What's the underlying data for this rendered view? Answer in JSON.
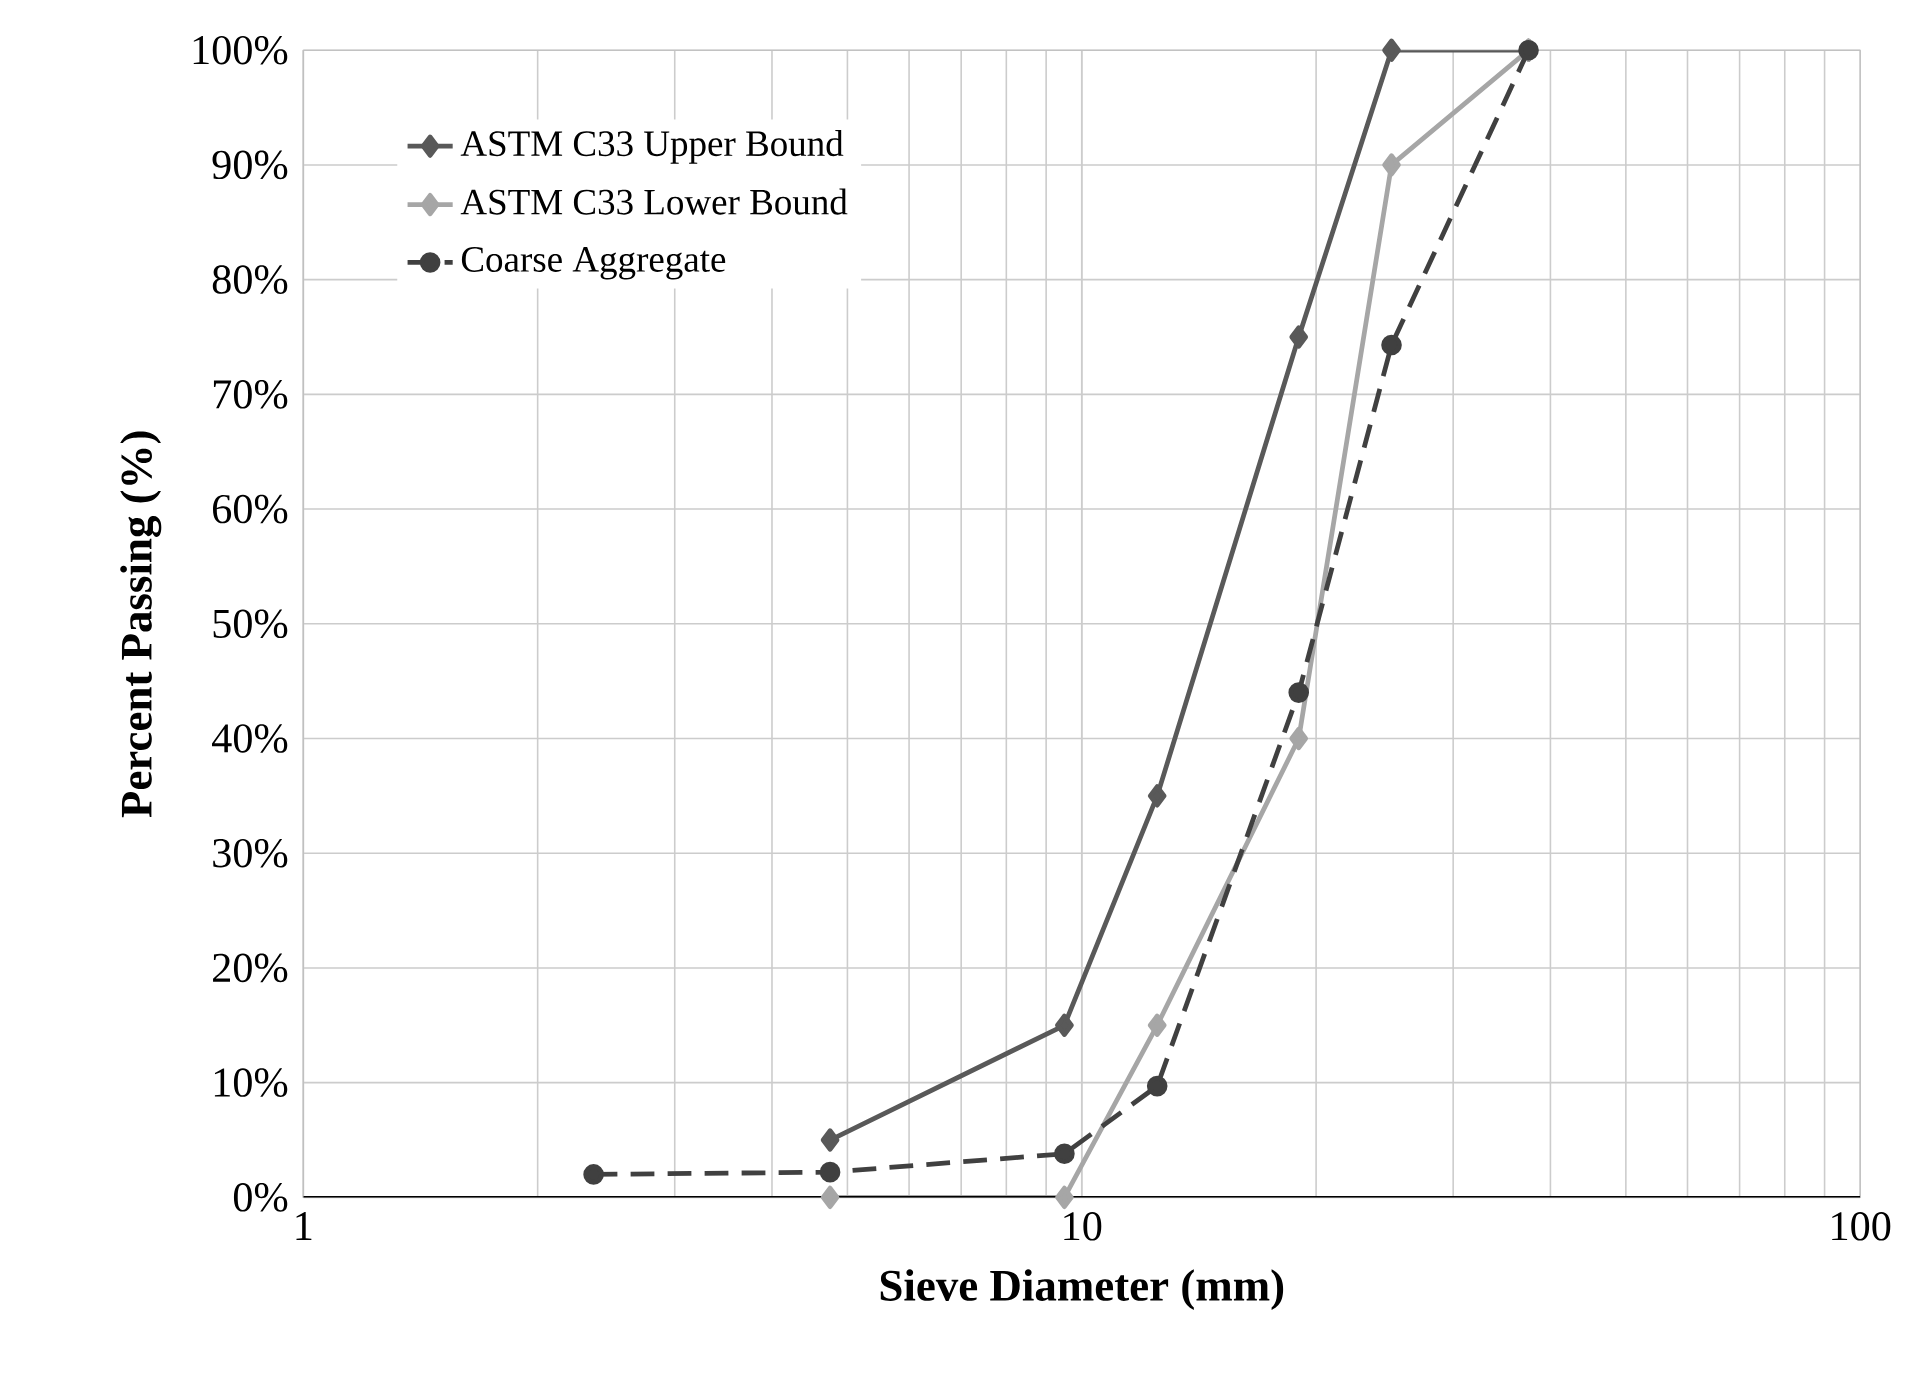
{
  "chart_data": {
    "type": "line",
    "xlabel": "Sieve Diameter (mm)",
    "ylabel": "Percent Passing (%)",
    "log": "x",
    "grid": true,
    "legend": "top left",
    "xlim": [
      1,
      100
    ],
    "xticks": [
      1,
      10,
      100
    ],
    "ylim": [
      0,
      100
    ],
    "yticks": [
      {
        "value": 0,
        "label": "0%"
      },
      {
        "value": 10,
        "label": "10%"
      },
      {
        "value": 20,
        "label": "20%"
      },
      {
        "value": 30,
        "label": "30%"
      },
      {
        "value": 40,
        "label": "40%"
      },
      {
        "value": 50,
        "label": "50%"
      },
      {
        "value": 60,
        "label": "60%"
      },
      {
        "value": 70,
        "label": "70%"
      },
      {
        "value": 80,
        "label": "80%"
      },
      {
        "value": 90,
        "label": "90%"
      },
      {
        "value": 100,
        "label": "100%"
      }
    ],
    "series": [
      {
        "name": "ASTM C33 Upper Bound",
        "color": "#595959",
        "marker": "diamond",
        "line_style": "solid",
        "x": [
          4.75,
          9.5,
          12.5,
          19,
          25,
          37.5
        ],
        "values": [
          5,
          15,
          35,
          75,
          100,
          100
        ]
      },
      {
        "name": "ASTM C33 Lower Bound",
        "color": "#a6a6a6",
        "marker": "diamond",
        "line_style": "solid",
        "x": [
          4.75,
          9.5,
          12.5,
          19,
          25,
          37.5
        ],
        "values": [
          0,
          0,
          15,
          40,
          90,
          100
        ]
      },
      {
        "name": "Coarse Aggregate",
        "color": "#404040",
        "marker": "circle",
        "line_style": "dashed",
        "x": [
          2.36,
          4.75,
          9.5,
          12.5,
          19,
          25,
          37.5
        ],
        "values": [
          2,
          2.2,
          3.8,
          9.7,
          44,
          74.3,
          100
        ]
      }
    ]
  }
}
